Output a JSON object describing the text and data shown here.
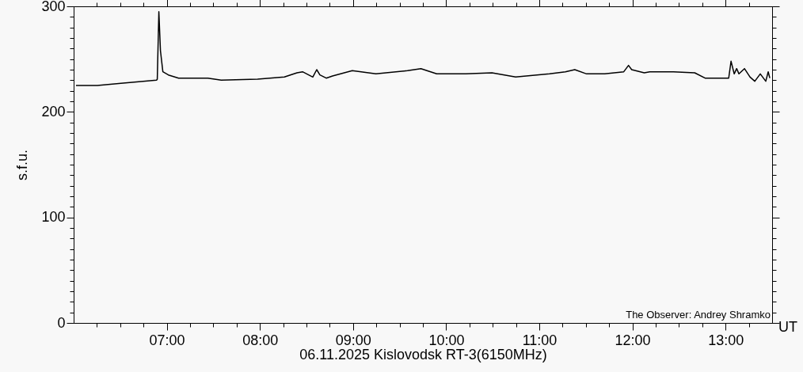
{
  "chart_data": {
    "type": "line",
    "xlabel": "06.11.2025 Kislovodsk RT-3(6150MHz)",
    "ylabel": "s.f.u.",
    "annotations": [
      "UT",
      "The Observer: Andrey Shramko"
    ],
    "x": [
      6.025,
      6.254,
      6.508,
      6.89,
      6.898,
      6.915,
      6.932,
      6.958,
      7.017,
      7.127,
      7.441,
      7.585,
      7.975,
      8.263,
      8.398,
      8.458,
      8.568,
      8.61,
      8.644,
      8.712,
      8.78,
      8.992,
      9.246,
      9.585,
      9.729,
      9.898,
      10.212,
      10.492,
      10.746,
      11.11,
      11.28,
      11.381,
      11.508,
      11.703,
      11.907,
      11.958,
      11.992,
      12.127,
      12.186,
      12.441,
      12.669,
      12.78,
      13.034,
      13.059,
      13.093,
      13.119,
      13.144,
      13.203,
      13.263,
      13.314,
      13.373,
      13.432,
      13.458,
      13.475
    ],
    "series": [
      {
        "color": "#000000",
        "values": [
          225,
          225,
          227,
          230,
          231,
          295,
          258,
          238,
          235,
          232,
          232,
          230,
          231,
          233,
          237,
          238,
          233,
          240,
          235,
          232,
          234,
          239,
          236,
          239,
          241,
          236,
          236,
          237,
          233,
          236,
          238,
          240,
          236,
          236,
          238,
          244,
          240,
          237,
          238,
          238,
          237,
          232,
          232,
          248,
          236,
          241,
          236,
          241,
          233,
          229,
          236,
          229,
          238,
          232
        ]
      }
    ],
    "xlim": [
      6,
      13.5
    ],
    "xticks": [
      {
        "value": 6.25,
        "label": null
      },
      {
        "value": 6.5,
        "label": null
      },
      {
        "value": 6.75,
        "label": null
      },
      {
        "value": 7,
        "label": "07:00"
      },
      {
        "value": 7.25,
        "label": null
      },
      {
        "value": 7.5,
        "label": null
      },
      {
        "value": 7.75,
        "label": null
      },
      {
        "value": 8,
        "label": "08:00"
      },
      {
        "value": 8.25,
        "label": null
      },
      {
        "value": 8.5,
        "label": null
      },
      {
        "value": 8.75,
        "label": null
      },
      {
        "value": 9,
        "label": "09:00"
      },
      {
        "value": 9.25,
        "label": null
      },
      {
        "value": 9.5,
        "label": null
      },
      {
        "value": 9.75,
        "label": null
      },
      {
        "value": 10,
        "label": "10:00"
      },
      {
        "value": 10.25,
        "label": null
      },
      {
        "value": 10.5,
        "label": null
      },
      {
        "value": 10.75,
        "label": null
      },
      {
        "value": 11,
        "label": "11:00"
      },
      {
        "value": 11.25,
        "label": null
      },
      {
        "value": 11.5,
        "label": null
      },
      {
        "value": 11.75,
        "label": null
      },
      {
        "value": 12,
        "label": "12:00"
      },
      {
        "value": 12.25,
        "label": null
      },
      {
        "value": 12.5,
        "label": null
      },
      {
        "value": 12.75,
        "label": null
      },
      {
        "value": 13,
        "label": "13:00"
      },
      {
        "value": 13.25,
        "label": null
      }
    ],
    "ylim": [
      0,
      300
    ],
    "yticks": [
      0,
      {
        "value": 10,
        "label": null
      },
      {
        "value": 20,
        "label": null
      },
      {
        "value": 30,
        "label": null
      },
      {
        "value": 40,
        "label": null
      },
      {
        "value": 50,
        "label": null
      },
      {
        "value": 60,
        "label": null
      },
      {
        "value": 70,
        "label": null
      },
      {
        "value": 80,
        "label": null
      },
      {
        "value": 90,
        "label": null
      },
      100,
      {
        "value": 110,
        "label": null
      },
      {
        "value": 120,
        "label": null
      },
      {
        "value": 130,
        "label": null
      },
      {
        "value": 140,
        "label": null
      },
      {
        "value": 150,
        "label": null
      },
      {
        "value": 160,
        "label": null
      },
      {
        "value": 170,
        "label": null
      },
      {
        "value": 180,
        "label": null
      },
      {
        "value": 190,
        "label": null
      },
      200,
      {
        "value": 210,
        "label": null
      },
      {
        "value": 220,
        "label": null
      },
      {
        "value": 230,
        "label": null
      },
      {
        "value": 240,
        "label": null
      },
      {
        "value": 250,
        "label": null
      },
      {
        "value": 260,
        "label": null
      },
      {
        "value": 270,
        "label": null
      },
      {
        "value": 280,
        "label": null
      },
      {
        "value": 290,
        "label": null
      },
      300
    ],
    "grid": false,
    "marker": "none",
    "line_style": "solid"
  }
}
